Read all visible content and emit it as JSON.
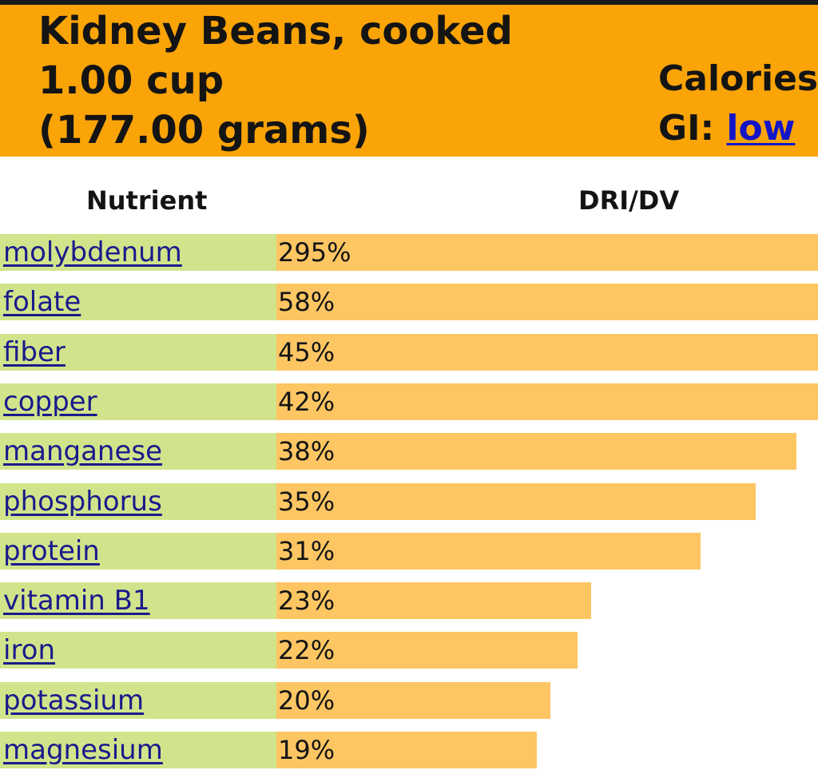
{
  "header": {
    "title_line1": "Kidney Beans, cooked",
    "title_line2": "1.00 cup",
    "title_line3": "(177.00 grams)",
    "calories_label": "Calories",
    "gi_label": "GI: ",
    "gi_value": "low"
  },
  "table": {
    "col_nutrient": "Nutrient",
    "col_dri": "DRI/DV",
    "rows": [
      {
        "name": "molybdenum",
        "percent_text": "295%",
        "percent": 295
      },
      {
        "name": "folate",
        "percent_text": "58%",
        "percent": 58
      },
      {
        "name": "fiber",
        "percent_text": "45%",
        "percent": 45
      },
      {
        "name": "copper",
        "percent_text": "42%",
        "percent": 42
      },
      {
        "name": "manganese",
        "percent_text": "38%",
        "percent": 38
      },
      {
        "name": "phosphorus",
        "percent_text": "35%",
        "percent": 35
      },
      {
        "name": "protein",
        "percent_text": "31%",
        "percent": 31
      },
      {
        "name": "vitamin B1",
        "percent_text": "23%",
        "percent": 23
      },
      {
        "name": "iron",
        "percent_text": "22%",
        "percent": 22
      },
      {
        "name": "potassium",
        "percent_text": "20%",
        "percent": 20
      },
      {
        "name": "magnesium",
        "percent_text": "19%",
        "percent": 19
      }
    ]
  },
  "colors": {
    "header_bg": "#fba407",
    "nutrient_cell_bg": "#d1e48b",
    "bar_color": "#fdc663",
    "link_color": "#1a1a8c"
  }
}
